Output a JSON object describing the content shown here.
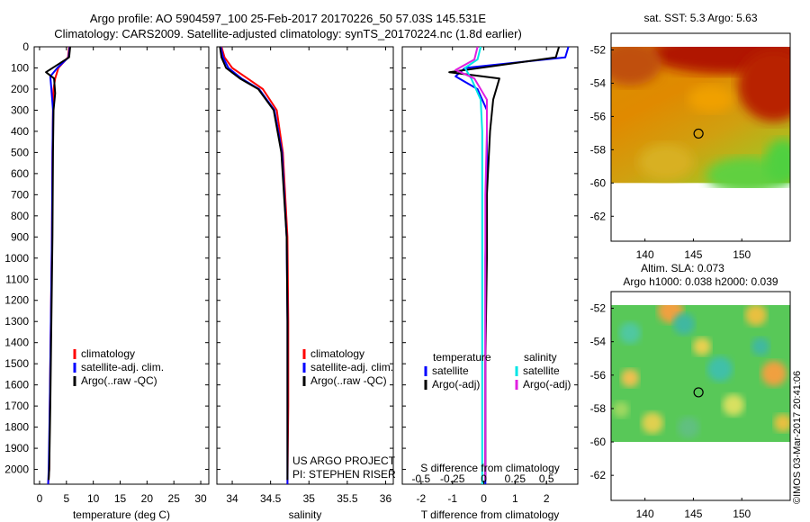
{
  "header": {
    "title_line1": "Argo profile: AO 5904597_100 25-Feb-2017 20170226_50 57.03S 145.531E",
    "title_line2": "Climatology: CARS2009. Satellite-adjusted climatology: synTS_20170224.nc (1.8d earlier)"
  },
  "credit": "©IMOS 03-Mar-2017 20:41:06",
  "project_lines": [
    "US ARGO PROJECT",
    "PI: STEPHEN RISER"
  ],
  "colors": {
    "climatology": "#ff0000",
    "satellite": "#0000ff",
    "argo": "#000000",
    "sal_satellite": "#00e5e5",
    "sal_argo": "#e020e0"
  },
  "chart_data": [
    {
      "type": "line",
      "xlabel": "temperature (deg C)",
      "xlim": [
        -1,
        31.5
      ],
      "xticks": [
        0,
        5,
        10,
        15,
        20,
        25,
        30
      ],
      "ylim": [
        2070,
        0
      ],
      "yticks": [
        0,
        100,
        200,
        300,
        400,
        500,
        600,
        700,
        800,
        900,
        1000,
        1100,
        1200,
        1300,
        1400,
        1500,
        1600,
        1700,
        1800,
        1900,
        2000
      ],
      "legend": [
        "climatology",
        "satellite-adj. clim.",
        "Argo(..raw -QC)"
      ],
      "series": [
        {
          "name": "climatology",
          "color": "#ff0000",
          "x": [
            5.5,
            5.3,
            3.5,
            2.9,
            2.6,
            2.5,
            2.4,
            2.3,
            2.1,
            1.9,
            1.8,
            1.6
          ],
          "y": [
            0,
            50,
            100,
            150,
            200,
            300,
            500,
            900,
            1300,
            1700,
            2000,
            2070
          ]
        },
        {
          "name": "satellite-adj. clim.",
          "color": "#0000ff",
          "x": [
            5.6,
            5.4,
            3.3,
            2.0,
            2.2,
            2.5,
            2.4,
            2.3,
            2.1,
            1.9,
            1.7,
            1.6
          ],
          "y": [
            0,
            50,
            100,
            140,
            200,
            300,
            500,
            900,
            1300,
            1700,
            2000,
            2070
          ]
        },
        {
          "name": "Argo(..raw -QC)",
          "color": "#000000",
          "x": [
            5.7,
            5.5,
            1.2,
            2.7,
            2.9,
            2.6,
            2.5,
            2.4,
            2.2,
            2.0,
            1.8,
            1.7
          ],
          "y": [
            0,
            50,
            120,
            150,
            220,
            300,
            500,
            900,
            1300,
            1700,
            2000,
            2050
          ]
        }
      ]
    },
    {
      "type": "line",
      "xlabel": "salinity",
      "xlim": [
        33.8,
        36.1
      ],
      "xticks": [
        34,
        34.5,
        35,
        35.5,
        36
      ],
      "ylim": [
        2070,
        0
      ],
      "legend": [
        "climatology",
        "satellite-adj. clim.",
        "Argo(..raw -QC)"
      ],
      "series": [
        {
          "name": "climatology",
          "color": "#ff0000",
          "x": [
            33.86,
            33.9,
            34.0,
            34.2,
            34.4,
            34.58,
            34.66,
            34.72,
            34.73,
            34.73,
            34.72
          ],
          "y": [
            0,
            50,
            100,
            150,
            200,
            300,
            500,
            900,
            1300,
            1700,
            2070
          ]
        },
        {
          "name": "satellite-adj. clim.",
          "color": "#0000ff",
          "x": [
            33.85,
            33.88,
            33.95,
            34.12,
            34.35,
            34.55,
            34.65,
            34.71,
            34.72,
            34.72,
            34.72
          ],
          "y": [
            0,
            50,
            100,
            150,
            200,
            300,
            500,
            900,
            1300,
            1700,
            2070
          ]
        },
        {
          "name": "Argo(..raw -QC)",
          "color": "#000000",
          "x": [
            33.84,
            33.86,
            33.92,
            34.1,
            34.34,
            34.54,
            34.64,
            34.71,
            34.72,
            34.72,
            34.72
          ],
          "y": [
            0,
            50,
            100,
            150,
            200,
            300,
            500,
            900,
            1300,
            1700,
            2050
          ]
        }
      ]
    },
    {
      "type": "line",
      "xlabel": "T difference from climatology",
      "xlabel_top": "S difference from climatology",
      "xlim": [
        -2.6,
        3.0
      ],
      "xticks": [
        -2,
        -1,
        0,
        1,
        2
      ],
      "s_ticks": [
        -0.5,
        -0.25,
        0,
        0.25,
        0.5
      ],
      "ylim": [
        2070,
        0
      ],
      "legend_header": [
        "temperature",
        "salinity"
      ],
      "legend": [
        "satellite",
        "Argo(-adj)",
        "satellite",
        "Argo(-adj)"
      ],
      "series": [
        {
          "name": "satellite",
          "color": "#0000ff",
          "x": [
            2.7,
            2.6,
            -0.6,
            -0.9,
            -0.2,
            0.1,
            0.1,
            0.05,
            0.05,
            0.05
          ],
          "y": [
            0,
            50,
            100,
            140,
            200,
            300,
            600,
            1000,
            1500,
            2070
          ]
        },
        {
          "name": "Argo(-adj)",
          "color": "#000000",
          "x": [
            2.4,
            2.3,
            -1.1,
            0.5,
            0.3,
            0.2,
            0.1,
            0.1,
            0.05,
            0.05
          ],
          "y": [
            0,
            50,
            120,
            150,
            250,
            400,
            700,
            1000,
            1500,
            2050
          ]
        },
        {
          "name": "satellite",
          "color": "#00e5e5",
          "x": [
            -0.1,
            -0.2,
            -0.6,
            -0.4,
            -0.1,
            -0.05,
            -0.05,
            -0.05,
            -0.05
          ],
          "y": [
            0,
            60,
            100,
            150,
            250,
            400,
            700,
            1500,
            2070
          ]
        },
        {
          "name": "Argo(-adj)",
          "color": "#e020e0",
          "x": [
            -0.2,
            -0.3,
            -0.9,
            -0.3,
            0.1,
            0.1,
            0.05,
            0.05,
            0.05
          ],
          "y": [
            0,
            60,
            110,
            150,
            250,
            400,
            700,
            1500,
            2050
          ]
        }
      ]
    },
    {
      "type": "heatmap",
      "title": "sat. SST: 5.3 Argo: 5.63",
      "xlim": [
        136.5,
        155
      ],
      "xticks": [
        140,
        145,
        150
      ],
      "ylim": [
        -63.5,
        -51
      ],
      "yticks": [
        -52,
        -54,
        -56,
        -58,
        -60,
        -62
      ],
      "data_bottom_lat": -60,
      "marker": {
        "lon": 145.53,
        "lat": -57.03
      }
    },
    {
      "type": "heatmap",
      "title_lines": [
        "Altim. SLA: 0.073",
        "Argo h1000: 0.038 h2000: 0.039"
      ],
      "xlim": [
        136.5,
        155
      ],
      "xticks": [
        140,
        145,
        150
      ],
      "ylim": [
        -63.5,
        -51
      ],
      "yticks": [
        -52,
        -54,
        -56,
        -58,
        -60,
        -62
      ],
      "data_bottom_lat": -60,
      "marker": {
        "lon": 145.53,
        "lat": -57.03
      }
    }
  ]
}
